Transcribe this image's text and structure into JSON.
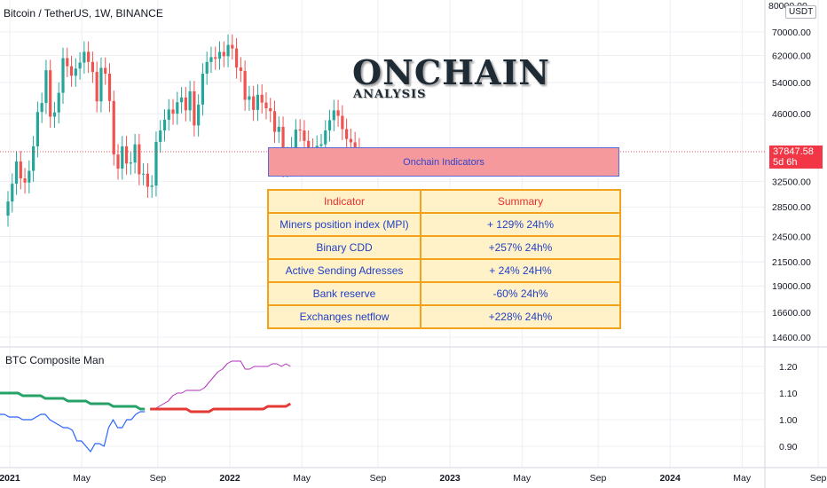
{
  "header": {
    "symbol_line": "Bitcoin / TetherUS, 1W, BINANCE"
  },
  "price_scale": {
    "currency": "USDT",
    "last_price": "37847.58",
    "countdown": "5d 6h",
    "top_label": "80000.00"
  },
  "overlay": {
    "title": "ONCHAIN",
    "subtitle": "ANALYSIS",
    "box_label": "Onchain Indicators"
  },
  "table": {
    "headers": [
      "Indicator",
      "Summary"
    ],
    "rows": [
      [
        "Miners position index (MPI)",
        "+ 129% 24h%"
      ],
      [
        "Binary CDD",
        "+257% 24h%"
      ],
      [
        "Active Sending Adresses",
        "+ 24% 24H%"
      ],
      [
        "Bank reserve",
        "-60% 24h%"
      ],
      [
        "Exchanges netflow",
        "+228% 24h%"
      ]
    ]
  },
  "indicator_pane": {
    "title": "BTC Composite Man"
  },
  "colors": {
    "up": "#26a69a",
    "down": "#ef5350",
    "composite_blue": "#2962ff",
    "composite_green": "#26a269",
    "composite_red": "#e53935",
    "composite_purple": "#b02fb8",
    "badge": "#f23645",
    "grid": "#e0e3eb"
  },
  "chart_data": [
    {
      "type": "candlestick",
      "title": "Bitcoin / TetherUS, 1W, BINANCE",
      "scale": "log",
      "y_ticks": [
        14600,
        16600,
        19000,
        21500,
        24500,
        28500,
        32500,
        46000,
        54000,
        62000,
        70000
      ],
      "x_tick_labels": [
        "2021",
        "May",
        "Sep",
        "2022",
        "May",
        "Sep",
        "2023",
        "May",
        "Sep",
        "2024",
        "May",
        "Sep"
      ],
      "x_ticks_weeks": [
        0,
        17,
        35,
        52,
        69,
        87,
        104,
        121,
        139,
        156,
        173,
        191
      ],
      "weekly_close": [
        29300,
        32100,
        36000,
        33000,
        32300,
        34300,
        38900,
        46400,
        48600,
        57500,
        45300,
        46300,
        51200,
        61200,
        58700,
        55900,
        58000,
        59800,
        63200,
        60000,
        57000,
        49000,
        58200,
        56500,
        49100,
        37300,
        34700,
        38900,
        35600,
        35800,
        39300,
        33700,
        33800,
        31600,
        31800,
        39800,
        42200,
        44600,
        47000,
        46000,
        48800,
        50000,
        46800,
        51600,
        43300,
        48200,
        56500,
        60000,
        61500,
        61000,
        63200,
        61800,
        65500,
        64300,
        58300,
        57300,
        49400,
        50300,
        46900,
        50700,
        48700,
        47300,
        46600,
        41900,
        43000,
        35100,
        36800,
        38700,
        42400,
        42200,
        40000,
        38400,
        37100,
        39000,
        39300,
        42200,
        44500,
        46800,
        45500,
        42500,
        40400,
        39700,
        38500,
        37847.58
      ],
      "last_price": 37847.58
    },
    {
      "type": "line",
      "title": "BTC Composite Man",
      "y_ticks": [
        0.9,
        1.0,
        1.1,
        1.2
      ],
      "series": [
        {
          "name": "",
          "color": "blue",
          "values": [
            1.02,
            1.02,
            1.01,
            1.01,
            1.01,
            1.0,
            1.0,
            1.0,
            1.01,
            1.02,
            1.02,
            1.0,
            0.99,
            0.98,
            0.97,
            0.97,
            0.96,
            0.92,
            0.92,
            0.9,
            0.88,
            0.91,
            0.91,
            0.9,
            0.97,
            1.0,
            0.97,
            0.97,
            1.0,
            1.0,
            1.02,
            1.03,
            1.03
          ]
        },
        {
          "name": "",
          "color": "green",
          "values": [
            1.1,
            1.1,
            1.1,
            1.1,
            1.1,
            1.09,
            1.09,
            1.09,
            1.09,
            1.09,
            1.08,
            1.08,
            1.08,
            1.08,
            1.08,
            1.07,
            1.07,
            1.07,
            1.07,
            1.07,
            1.06,
            1.06,
            1.06,
            1.06,
            1.06,
            1.05,
            1.05,
            1.05,
            1.05,
            1.05,
            1.05,
            1.04,
            1.04
          ]
        },
        {
          "name": "",
          "color": "purple",
          "values": [
            1.04,
            1.04,
            1.05,
            1.06,
            1.07,
            1.09,
            1.1,
            1.1,
            1.11,
            1.11,
            1.11,
            1.11,
            1.12,
            1.14,
            1.16,
            1.18,
            1.19,
            1.21,
            1.22,
            1.22,
            1.22,
            1.19,
            1.19,
            1.2,
            1.2,
            1.2,
            1.2,
            1.21,
            1.21,
            1.2,
            1.21,
            1.2
          ]
        },
        {
          "name": "",
          "color": "red",
          "values": [
            1.04,
            1.04,
            1.04,
            1.04,
            1.04,
            1.04,
            1.04,
            1.04,
            1.04,
            1.03,
            1.03,
            1.03,
            1.03,
            1.03,
            1.04,
            1.04,
            1.04,
            1.04,
            1.04,
            1.04,
            1.04,
            1.04,
            1.04,
            1.04,
            1.04,
            1.04,
            1.05,
            1.05,
            1.05,
            1.05,
            1.05,
            1.06
          ]
        }
      ]
    }
  ]
}
